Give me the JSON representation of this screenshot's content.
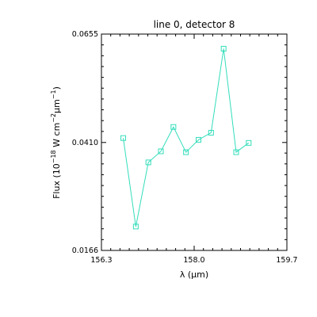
{
  "chart_data": {
    "type": "line",
    "title": "line 0, detector 8",
    "xlabel": "λ (μm)",
    "ylabel_parts": {
      "pre": "Flux (10",
      "exp1": "−18",
      "mid": " W cm",
      "exp2": "−2",
      "mu": "μ",
      "m": "m",
      "exp3": "−1",
      "post": ")"
    },
    "xlim": [
      156.3,
      159.7
    ],
    "ylim": [
      0.0166,
      0.0655
    ],
    "xticks": [
      156.3,
      158.0,
      159.7
    ],
    "xtick_labels": [
      "156.3",
      "158.0",
      "159.7"
    ],
    "yticks": [
      0.0166,
      0.041,
      0.0655
    ],
    "ytick_labels": [
      "0.0166",
      "0.0410",
      "0.0655"
    ],
    "grid": false,
    "marker": "square",
    "series_color": "#33ddbb",
    "x": [
      156.7,
      156.93,
      157.16,
      157.39,
      157.62,
      157.85,
      158.08,
      158.31,
      158.54,
      158.77,
      159.0
    ],
    "y": [
      0.042,
      0.022,
      0.0365,
      0.039,
      0.0445,
      0.0388,
      0.0416,
      0.0432,
      0.0622,
      0.0388,
      0.0409
    ]
  }
}
